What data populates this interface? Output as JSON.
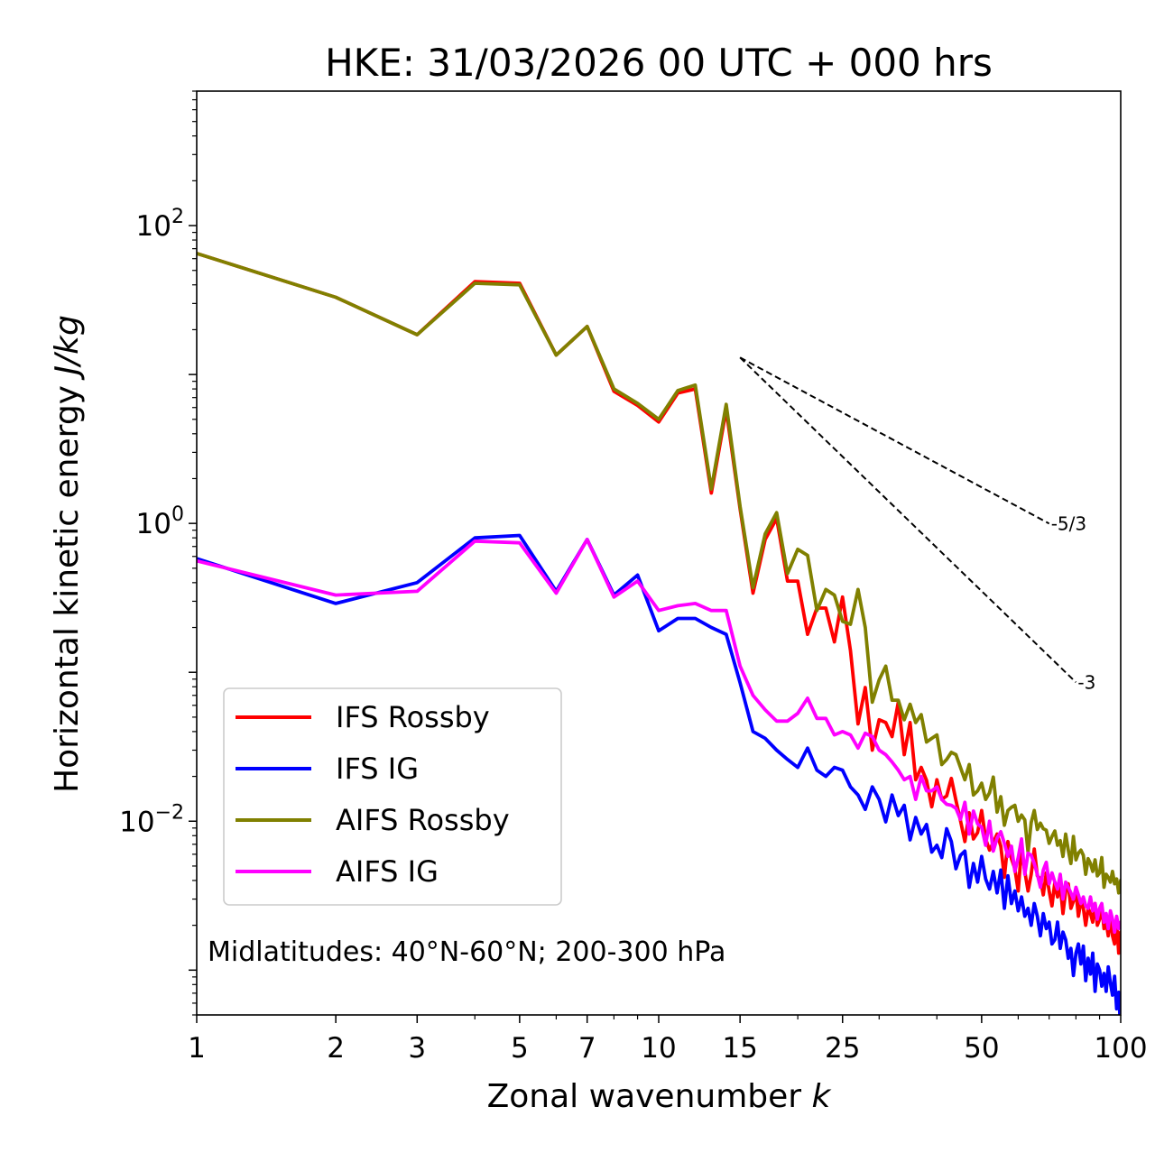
{
  "chart_data": {
    "type": "line",
    "title": "HKE: 31/03/2026 00 UTC + 000 hrs",
    "xlabel": "Zonal wavenumber",
    "xlabel_var": "k",
    "ylabel": "Horizontal kinetic energy",
    "ylabel_unit": "J/kg",
    "xscale": "log",
    "yscale": "log",
    "xlim": [
      1,
      100
    ],
    "ylim": [
      0.0005,
      800
    ],
    "xticks": [
      {
        "value": 1,
        "label": "1"
      },
      {
        "value": 2,
        "label": "2"
      },
      {
        "value": 3,
        "label": "3"
      },
      {
        "value": 5,
        "label": "5"
      },
      {
        "value": 7,
        "label": "7"
      },
      {
        "value": 10,
        "label": "10"
      },
      {
        "value": 15,
        "label": "15"
      },
      {
        "value": 25,
        "label": "25"
      },
      {
        "value": 50,
        "label": "50"
      },
      {
        "value": 100,
        "label": "100"
      }
    ],
    "yticks": [
      {
        "value": 100,
        "base": "10",
        "exp": "2"
      },
      {
        "value": 1,
        "base": "10",
        "exp": "0"
      },
      {
        "value": 0.01,
        "base": "10",
        "exp": "−2"
      }
    ],
    "annotation": "Midlatitudes: 40°N-60°N; 200-300 hPa",
    "legend_position": "lower-left",
    "slopes": [
      {
        "label": "-5/3",
        "exponent": -1.6667,
        "x0": 15,
        "y0": 13,
        "x1": 70
      },
      {
        "label": "-3",
        "exponent": -3,
        "x0": 15,
        "y0": 13,
        "x1": 80
      }
    ],
    "series": [
      {
        "name": "IFS Rossby",
        "color": "#ff0000",
        "x": [
          1,
          2,
          3,
          4,
          5,
          6,
          7,
          8,
          9,
          10,
          11,
          12,
          13,
          14,
          15,
          16,
          17,
          18,
          19,
          20,
          21,
          22,
          23,
          24,
          25,
          26,
          27,
          28,
          29,
          30,
          31,
          32,
          33,
          34,
          35,
          36,
          37,
          38,
          39,
          40,
          41,
          42,
          43,
          44,
          45,
          46,
          47,
          48,
          49,
          50,
          51,
          52,
          53,
          54,
          55,
          56,
          57,
          58,
          59,
          60,
          61,
          62,
          63,
          64,
          65,
          66,
          67,
          68,
          69,
          70,
          71,
          72,
          73,
          74,
          75,
          76,
          77,
          78,
          79,
          80,
          81,
          82,
          83,
          84,
          85,
          86,
          87,
          88,
          89,
          90,
          91,
          92,
          93,
          94,
          95,
          96,
          97,
          98,
          99,
          100
        ],
        "y": [
          65,
          33,
          18.5,
          42,
          41,
          13.5,
          21,
          7.7,
          6.2,
          4.8,
          7.5,
          8,
          1.6,
          5.8,
          1.25,
          0.34,
          0.78,
          1.08,
          0.41,
          0.41,
          0.18,
          0.27,
          0.27,
          0.16,
          0.32,
          0.14,
          0.045,
          0.079,
          0.03,
          0.048,
          0.046,
          0.037,
          0.063,
          0.028,
          0.046,
          0.019,
          0.023,
          0.0188,
          0.0125,
          0.019,
          0.014,
          0.0148,
          0.0194,
          0.0138,
          0.0101,
          0.0073,
          0.0114,
          0.0076,
          0.0084,
          0.0118,
          0.0076,
          0.0064,
          0.0072,
          0.0082,
          0.0068,
          0.0042,
          0.0073,
          0.0056,
          0.0048,
          0.0034,
          0.0066,
          0.0046,
          0.0034,
          0.0044,
          0.0065,
          0.0043,
          0.0041,
          0.0032,
          0.0045,
          0.0034,
          0.0027,
          0.0039,
          0.0031,
          0.0037,
          0.0024,
          0.0034,
          0.0038,
          0.0026,
          0.0029,
          0.0034,
          0.0023,
          0.0029,
          0.0026,
          0.002,
          0.0026,
          0.0024,
          0.0021,
          0.0028,
          0.002,
          0.0022,
          0.0027,
          0.0019,
          0.0021,
          0.0017,
          0.0023,
          0.0017,
          0.0015,
          0.0021,
          0.0013,
          0.0018
        ]
      },
      {
        "name": "IFS IG",
        "color": "#0000ff",
        "x": [
          1,
          2,
          3,
          4,
          5,
          6,
          7,
          8,
          9,
          10,
          11,
          12,
          13,
          14,
          15,
          16,
          17,
          18,
          19,
          20,
          21,
          22,
          23,
          24,
          25,
          26,
          27,
          28,
          29,
          30,
          31,
          32,
          33,
          34,
          35,
          36,
          37,
          38,
          39,
          40,
          41,
          42,
          43,
          44,
          45,
          46,
          47,
          48,
          49,
          50,
          51,
          52,
          53,
          54,
          55,
          56,
          57,
          58,
          59,
          60,
          61,
          62,
          63,
          64,
          65,
          66,
          67,
          68,
          69,
          70,
          71,
          72,
          73,
          74,
          75,
          76,
          77,
          78,
          79,
          80,
          81,
          82,
          83,
          84,
          85,
          86,
          87,
          88,
          89,
          90,
          91,
          92,
          93,
          94,
          95,
          96,
          97,
          98,
          99,
          100
        ],
        "y": [
          0.58,
          0.29,
          0.4,
          0.8,
          0.83,
          0.35,
          0.78,
          0.33,
          0.45,
          0.19,
          0.23,
          0.23,
          0.2,
          0.18,
          0.085,
          0.04,
          0.036,
          0.03,
          0.026,
          0.023,
          0.031,
          0.022,
          0.02,
          0.023,
          0.022,
          0.017,
          0.015,
          0.012,
          0.017,
          0.014,
          0.0099,
          0.015,
          0.0109,
          0.0128,
          0.0075,
          0.0106,
          0.0082,
          0.0095,
          0.0062,
          0.0069,
          0.0057,
          0.0089,
          0.0073,
          0.0048,
          0.0059,
          0.0063,
          0.0036,
          0.0052,
          0.0039,
          0.0058,
          0.0041,
          0.0035,
          0.0046,
          0.0033,
          0.0047,
          0.0026,
          0.0043,
          0.0028,
          0.0034,
          0.0025,
          0.0031,
          0.0023,
          0.0026,
          0.002,
          0.0028,
          0.0023,
          0.0017,
          0.0024,
          0.0019,
          0.0021,
          0.0015,
          0.0016,
          0.0021,
          0.0014,
          0.0018,
          0.0016,
          0.0012,
          0.0014,
          0.00092,
          0.0013,
          0.0015,
          0.0011,
          0.00145,
          0.00085,
          0.0012,
          0.00094,
          0.0013,
          0.00072,
          0.0011,
          0.001,
          0.00078,
          0.00095,
          0.00072,
          0.00105,
          0.00082,
          0.00068,
          0.00091,
          0.00055,
          0.00071,
          0.00038
        ]
      },
      {
        "name": "AIFS Rossby",
        "color": "#808000",
        "x": [
          1,
          2,
          3,
          4,
          5,
          6,
          7,
          8,
          9,
          10,
          11,
          12,
          13,
          14,
          15,
          16,
          17,
          18,
          19,
          20,
          21,
          22,
          23,
          24,
          25,
          26,
          27,
          28,
          29,
          30,
          31,
          32,
          33,
          34,
          35,
          36,
          37,
          38,
          39,
          40,
          41,
          42,
          43,
          44,
          45,
          46,
          47,
          48,
          49,
          50,
          51,
          52,
          53,
          54,
          55,
          56,
          57,
          58,
          59,
          60,
          61,
          62,
          63,
          64,
          65,
          66,
          67,
          68,
          69,
          70,
          71,
          72,
          73,
          74,
          75,
          76,
          77,
          78,
          79,
          80,
          81,
          82,
          83,
          84,
          85,
          86,
          87,
          88,
          89,
          90,
          91,
          92,
          93,
          94,
          95,
          96,
          97,
          98,
          99,
          100
        ],
        "y": [
          65,
          33,
          18.5,
          41,
          40,
          13.5,
          21,
          8,
          6.4,
          5,
          7.8,
          8.5,
          1.7,
          6.3,
          1.3,
          0.37,
          0.85,
          1.18,
          0.46,
          0.67,
          0.61,
          0.26,
          0.36,
          0.33,
          0.22,
          0.21,
          0.36,
          0.2,
          0.063,
          0.089,
          0.11,
          0.065,
          0.065,
          0.048,
          0.061,
          0.046,
          0.052,
          0.034,
          0.036,
          0.038,
          0.024,
          0.026,
          0.029,
          0.028,
          0.023,
          0.019,
          0.024,
          0.015,
          0.016,
          0.018,
          0.014,
          0.0155,
          0.0198,
          0.0115,
          0.0146,
          0.0094,
          0.0118,
          0.0124,
          0.0128,
          0.01,
          0.011,
          0.0102,
          0.0062,
          0.0098,
          0.0118,
          0.0088,
          0.0097,
          0.0089,
          0.0087,
          0.0071,
          0.0079,
          0.0086,
          0.0069,
          0.0074,
          0.0058,
          0.0082,
          0.0064,
          0.0052,
          0.0079,
          0.0055,
          0.0061,
          0.0064,
          0.0059,
          0.0044,
          0.0056,
          0.0052,
          0.0046,
          0.0055,
          0.0043,
          0.0045,
          0.0057,
          0.0036,
          0.0044,
          0.0042,
          0.0039,
          0.0046,
          0.0038,
          0.0041,
          0.0033,
          0.004
        ]
      },
      {
        "name": "AIFS IG",
        "color": "#ff00ff",
        "x": [
          1,
          2,
          3,
          4,
          5,
          6,
          7,
          8,
          9,
          10,
          11,
          12,
          13,
          14,
          15,
          16,
          17,
          18,
          19,
          20,
          21,
          22,
          23,
          24,
          25,
          26,
          27,
          28,
          29,
          30,
          31,
          32,
          33,
          34,
          35,
          36,
          37,
          38,
          39,
          40,
          41,
          42,
          43,
          44,
          45,
          46,
          47,
          48,
          49,
          50,
          51,
          52,
          53,
          54,
          55,
          56,
          57,
          58,
          59,
          60,
          61,
          62,
          63,
          64,
          65,
          66,
          67,
          68,
          69,
          70,
          71,
          72,
          73,
          74,
          75,
          76,
          77,
          78,
          79,
          80,
          81,
          82,
          83,
          84,
          85,
          86,
          87,
          88,
          89,
          90,
          91,
          92,
          93,
          94,
          95,
          96,
          97,
          98,
          99,
          100
        ],
        "y": [
          0.56,
          0.33,
          0.35,
          0.76,
          0.74,
          0.34,
          0.78,
          0.32,
          0.41,
          0.26,
          0.28,
          0.29,
          0.26,
          0.26,
          0.11,
          0.07,
          0.056,
          0.047,
          0.047,
          0.053,
          0.067,
          0.049,
          0.049,
          0.038,
          0.04,
          0.038,
          0.031,
          0.039,
          0.037,
          0.03,
          0.028,
          0.025,
          0.022,
          0.019,
          0.02,
          0.014,
          0.02,
          0.016,
          0.016,
          0.017,
          0.014,
          0.013,
          0.0128,
          0.0122,
          0.0103,
          0.0134,
          0.0082,
          0.0117,
          0.0096,
          0.0091,
          0.0069,
          0.01,
          0.0063,
          0.0077,
          0.0085,
          0.0071,
          0.0058,
          0.0068,
          0.0046,
          0.0057,
          0.0076,
          0.0044,
          0.0061,
          0.0059,
          0.0052,
          0.0044,
          0.0036,
          0.0047,
          0.0053,
          0.0038,
          0.0045,
          0.0039,
          0.0035,
          0.0044,
          0.003,
          0.0039,
          0.0036,
          0.0033,
          0.003,
          0.0036,
          0.0032,
          0.0028,
          0.0031,
          0.0027,
          0.0026,
          0.0031,
          0.0025,
          0.0028,
          0.0022,
          0.0026,
          0.0028,
          0.0021,
          0.0024,
          0.0019,
          0.0025,
          0.0022,
          0.0018,
          0.0023,
          0.0019,
          0.0021
        ]
      }
    ]
  }
}
